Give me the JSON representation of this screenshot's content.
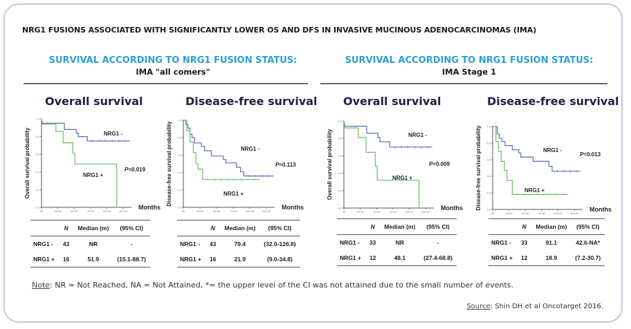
{
  "main_title": "NRG1 FUSIONS ASSOCIATED WITH SIGNIFICANTLY LOWER OS AND DFS IN INVASIVE MUCINOUS ADENOCARCINOMAS (IMA)",
  "colors": {
    "accent": "#2b9fd1",
    "nrg1_neg": "#5a6fb5",
    "nrg1_pos": "#6dbb6d",
    "title_dark": "#1c2440"
  },
  "sections": [
    {
      "heading": "SURVIVAL ACCORDING TO NRG1 FUSION STATUS:",
      "subheading": "IMA \"all comers\""
    },
    {
      "heading": "SURVIVAL ACCORDING TO NRG1 FUSION STATUS:",
      "subheading": "IMA Stage 1"
    }
  ],
  "table_headers": {
    "group": "",
    "n": "N",
    "median": "Median (m)",
    "ci": "(95% CI)"
  },
  "chart_data": [
    {
      "type": "line",
      "title": "Overall survival",
      "section": "IMA all comers",
      "xlabel": "Months",
      "ylabel": "Overall survival probability",
      "xlim": [
        0,
        137.5
      ],
      "ylim": [
        0,
        1.0
      ],
      "xticks": [
        "00",
        "25.00",
        "50.00",
        "75.00",
        "100.00",
        "125.00"
      ],
      "yticks": [
        "0.0",
        "0.2",
        "0.4",
        "0.6",
        "0.8",
        "1.0"
      ],
      "p_value": "P=0.019",
      "legend_neg": "NRG1 -",
      "legend_pos": "NRG1 +",
      "series": [
        {
          "name": "NRG1 -",
          "x": [
            0,
            1,
            35,
            35,
            53,
            53,
            56,
            56,
            70,
            70,
            135
          ],
          "y": [
            1.0,
            0.95,
            0.95,
            0.88,
            0.88,
            0.84,
            0.84,
            0.8,
            0.8,
            0.75,
            0.75
          ]
        },
        {
          "name": "NRG1 +",
          "x": [
            0,
            2,
            22,
            22,
            33,
            33,
            48,
            48,
            51,
            51,
            115,
            115
          ],
          "y": [
            1.0,
            0.94,
            0.94,
            0.86,
            0.86,
            0.73,
            0.73,
            0.61,
            0.61,
            0.49,
            0.49,
            0.0
          ]
        }
      ],
      "table": [
        {
          "group": "NRG1 -",
          "n": "43",
          "median": "NR",
          "ci": "-"
        },
        {
          "group": "NRG1 +",
          "n": "16",
          "median": "51.9",
          "ci": "(15.1-88.7)"
        }
      ]
    },
    {
      "type": "line",
      "title": "Disease-free survival",
      "section": "IMA all comers",
      "xlabel": "Months",
      "ylabel": "Disease-free survival probability",
      "xlim": [
        0,
        137.5
      ],
      "ylim": [
        0,
        1.0
      ],
      "xticks": [
        "00",
        "25.00",
        "50.00",
        "75.00",
        "100.00",
        "125.00"
      ],
      "yticks": [
        "0.0",
        "0.2",
        "0.4",
        "0.6",
        "0.8",
        "1.0"
      ],
      "p_value": "P=0.113",
      "legend_neg": "NRG1 -",
      "legend_pos": "NRG1 +",
      "series": [
        {
          "name": "NRG1 -",
          "x": [
            0,
            4,
            4,
            7,
            7,
            10,
            10,
            13,
            13,
            17,
            17,
            27,
            27,
            32,
            32,
            42,
            42,
            60,
            60,
            64,
            64,
            80,
            80,
            86,
            86,
            91,
            91,
            136
          ],
          "y": [
            1.0,
            1.0,
            0.95,
            0.95,
            0.91,
            0.91,
            0.84,
            0.84,
            0.8,
            0.8,
            0.74,
            0.74,
            0.7,
            0.7,
            0.65,
            0.65,
            0.59,
            0.59,
            0.55,
            0.55,
            0.51,
            0.51,
            0.46,
            0.46,
            0.41,
            0.41,
            0.36,
            0.36
          ]
        },
        {
          "name": "NRG1 +",
          "x": [
            0,
            5,
            5,
            10,
            10,
            15,
            15,
            19,
            19,
            22,
            22,
            29,
            29,
            115
          ],
          "y": [
            1.0,
            1.0,
            0.88,
            0.88,
            0.75,
            0.75,
            0.63,
            0.63,
            0.5,
            0.5,
            0.44,
            0.44,
            0.32,
            0.32
          ]
        }
      ],
      "table": [
        {
          "group": "NRG1 -",
          "n": "43",
          "median": "79.4",
          "ci": "(32.0-126.8)"
        },
        {
          "group": "NRG1 +",
          "n": "16",
          "median": "21.9",
          "ci": "(9.0-34.8)"
        }
      ]
    },
    {
      "type": "line",
      "title": "Overall survival",
      "section": "IMA Stage 1",
      "xlabel": "Months",
      "ylabel": "Overall survival probability",
      "xlim": [
        0,
        137.5
      ],
      "ylim": [
        0,
        1.0
      ],
      "xticks": [
        "00",
        "25.00",
        "50.00",
        "75.00",
        "100.00",
        "125.00"
      ],
      "yticks": [
        "0.0",
        "0.2",
        "0.4",
        "0.6",
        "0.8",
        "1.0"
      ],
      "p_value": "P=0.009",
      "legend_neg": "NRG1 -",
      "legend_pos": "NRG1 +",
      "series": [
        {
          "name": "NRG1 -",
          "x": [
            0,
            2,
            35,
            35,
            52,
            52,
            55,
            55,
            70,
            70,
            135
          ],
          "y": [
            1.0,
            0.94,
            0.94,
            0.86,
            0.86,
            0.81,
            0.81,
            0.76,
            0.76,
            0.7,
            0.7
          ]
        },
        {
          "name": "NRG1 +",
          "x": [
            0,
            2,
            22,
            22,
            34,
            34,
            48,
            48,
            51,
            51,
            115,
            115
          ],
          "y": [
            1.0,
            0.92,
            0.92,
            0.81,
            0.81,
            0.64,
            0.64,
            0.48,
            0.48,
            0.32,
            0.32,
            0.0
          ]
        }
      ],
      "table": [
        {
          "group": "NRG1 -",
          "n": "33",
          "median": "NR",
          "ci": "-"
        },
        {
          "group": "NRG1 +",
          "n": "12",
          "median": "48.1",
          "ci": "(27.4-68.8)"
        }
      ]
    },
    {
      "type": "line",
      "title": "Disease-free survival",
      "section": "IMA Stage 1",
      "xlabel": "Months",
      "ylabel": "Disease-free survival probability",
      "xlim": [
        0,
        137.5
      ],
      "ylim": [
        0,
        1.0
      ],
      "xticks": [
        "00",
        "25.00",
        "50.00",
        "75.00",
        "100.00",
        "125.00"
      ],
      "yticks": [
        "0.0",
        "0.2",
        "0.4",
        "0.6",
        "0.8",
        "1.0"
      ],
      "p_value": "P=0.013",
      "legend_neg": "NRG1 -",
      "legend_pos": "NRG1 +",
      "series": [
        {
          "name": "NRG1 -",
          "x": [
            0,
            7,
            7,
            10,
            10,
            14,
            14,
            19,
            19,
            30,
            30,
            40,
            40,
            43,
            43,
            62,
            62,
            86,
            86,
            91,
            91,
            134
          ],
          "y": [
            1.0,
            1.0,
            0.91,
            0.91,
            0.86,
            0.86,
            0.82,
            0.82,
            0.77,
            0.77,
            0.72,
            0.72,
            0.68,
            0.68,
            0.63,
            0.63,
            0.58,
            0.58,
            0.52,
            0.52,
            0.46,
            0.46
          ]
        },
        {
          "name": "NRG1 +",
          "x": [
            0,
            5,
            5,
            9,
            9,
            13,
            13,
            18,
            18,
            22,
            22,
            30,
            30,
            115
          ],
          "y": [
            1.0,
            1.0,
            0.82,
            0.82,
            0.7,
            0.7,
            0.58,
            0.58,
            0.47,
            0.47,
            0.35,
            0.35,
            0.18,
            0.18
          ]
        }
      ],
      "table": [
        {
          "group": "NRG1 -",
          "n": "33",
          "median": "91.1",
          "ci": "42.6-NA*"
        },
        {
          "group": "NRG1 +",
          "n": "12",
          "median": "18.9",
          "ci": "(7.2-30.7)"
        }
      ]
    }
  ],
  "note": {
    "label": "Note",
    "text": ": NR = Not Reached, NA = Not Attained, *= the upper level of the CI was not attained due to the small number of events."
  },
  "source": {
    "label": "Source",
    "text": ": Shin DH et al Oncotarget 2016."
  }
}
